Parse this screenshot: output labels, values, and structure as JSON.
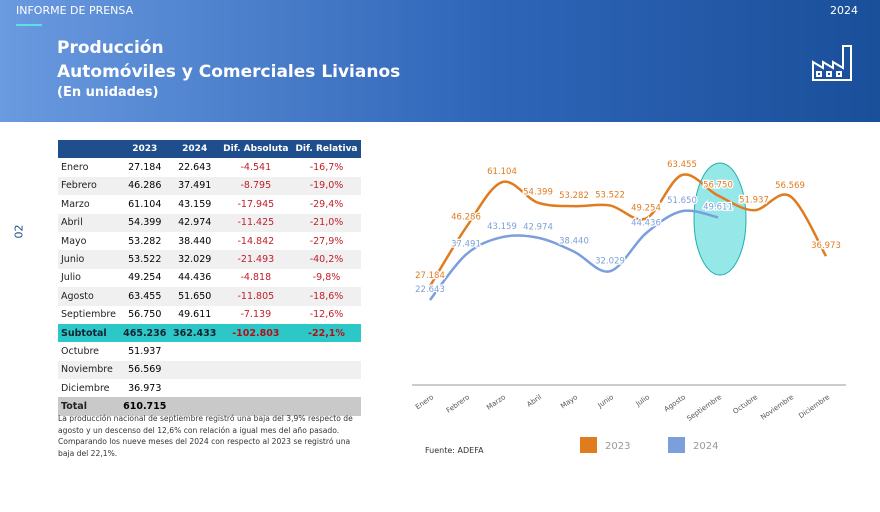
{
  "header": {
    "label": "INFORME DE PRENSA",
    "year": "2024",
    "title": "Producción",
    "subtitle": "Automóviles y Comerciales Livianos",
    "unit": "(En unidades)"
  },
  "page_number": "02",
  "table": {
    "columns": [
      "2023",
      "2024",
      "Dif. Absoluta",
      "Dif. Relativa"
    ],
    "rows": [
      [
        "Enero",
        "27.184",
        "22.643",
        "-4.541",
        "-16,7%"
      ],
      [
        "Febrero",
        "46.286",
        "37.491",
        "-8.795",
        "-19,0%"
      ],
      [
        "Marzo",
        "61.104",
        "43.159",
        "-17.945",
        "-29,4%"
      ],
      [
        "Abril",
        "54.399",
        "42.974",
        "-11.425",
        "-21,0%"
      ],
      [
        "Mayo",
        "53.282",
        "38.440",
        "-14.842",
        "-27,9%"
      ],
      [
        "Junio",
        "53.522",
        "32.029",
        "-21.493",
        "-40,2%"
      ],
      [
        "Julio",
        "49.254",
        "44.436",
        "-4.818",
        "-9,8%"
      ],
      [
        "Agosto",
        "63.455",
        "51.650",
        "-11.805",
        "-18,6%"
      ],
      [
        "Septiembre",
        "56.750",
        "49.611",
        "-7.139",
        "-12,6%"
      ],
      [
        "Subtotal",
        "465.236",
        "362.433",
        "-102.803",
        "-22,1%"
      ],
      [
        "Octubre",
        "51.937"
      ],
      [
        "Noviembre",
        "56.569"
      ],
      [
        "Diciembre",
        "36.973"
      ],
      [
        "Total",
        "610.715"
      ]
    ]
  },
  "notes": [
    "La producción nacional de septiembre registró una baja del 3,9% respecto de agosto y un descenso del 12,6% con relación a igual mes del año pasado.",
    "Comparando los nueve meses del 2024 con respecto al 2023 se registró una baja del 22,1%."
  ],
  "chart_data": {
    "type": "line",
    "source": "Fuente: ADEFA",
    "categories": [
      "Enero",
      "Febrero",
      "Marzo",
      "Abril",
      "Mayo",
      "Junio",
      "Julio",
      "Agosto",
      "Septiembre",
      "Octubre",
      "Noviembre",
      "Diciembre"
    ],
    "series": [
      {
        "name": "2023",
        "color": "#e07b20",
        "values": [
          27184,
          46286,
          61104,
          54399,
          53282,
          53522,
          49254,
          63455,
          56750,
          51937,
          56569,
          36973
        ],
        "value_labels": [
          "27.184",
          "46.286",
          "61.104",
          "54.399",
          "53.282",
          "53.522",
          "49.254",
          "63.455",
          "56.750",
          "51.937",
          "56.569",
          "36.973"
        ]
      },
      {
        "name": "2024",
        "color": "#7b9fdb",
        "values": [
          22643,
          37491,
          43159,
          42974,
          38440,
          32029,
          44436,
          51650,
          49611,
          null,
          null,
          null
        ],
        "value_labels": [
          "22.643",
          "37.491",
          "43.159",
          "42.974",
          "38.440",
          "32.029",
          "44.436",
          "51.650",
          "49.611",
          null,
          null,
          null
        ]
      }
    ]
  }
}
